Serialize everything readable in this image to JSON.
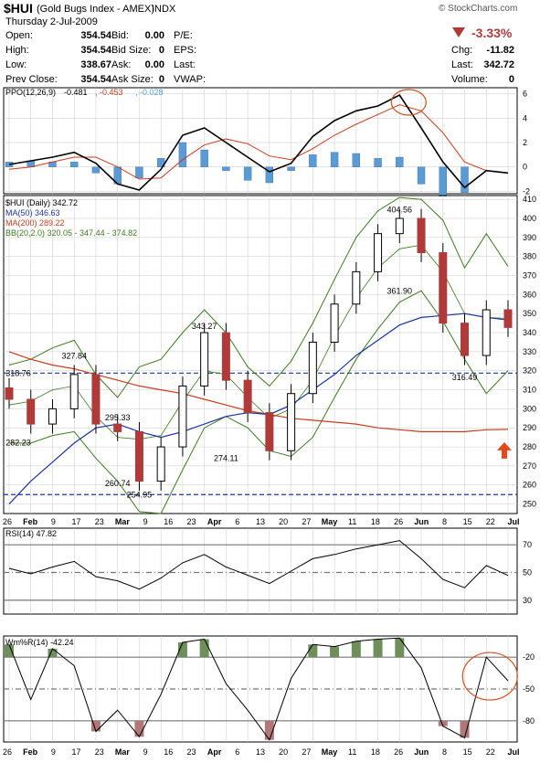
{
  "header": {
    "symbol": "$HUI",
    "description": "(Gold Bugs Index - AMEX)",
    "exchange": "INDX",
    "date": "Thursday  2-Jul-2009",
    "brand": "© StockCharts.com",
    "change_pct": "-3.33%",
    "fields": [
      {
        "label": "Open:",
        "value": "354.54"
      },
      {
        "label": "High:",
        "value": "354.54"
      },
      {
        "label": "Low:",
        "value": "338.67"
      },
      {
        "label": "Prev Close:",
        "value": "354.54"
      },
      {
        "label": "Bid:",
        "value": "0.00"
      },
      {
        "label": "Bid Size:",
        "value": "0"
      },
      {
        "label": "Ask:",
        "value": "0.00"
      },
      {
        "label": "Ask Size:",
        "value": "0"
      },
      {
        "label": "P/E:",
        "value": ""
      },
      {
        "label": "EPS:",
        "value": ""
      },
      {
        "label": "Last:",
        "value": ""
      },
      {
        "label": "VWAP:",
        "value": ""
      },
      {
        "label": "Chg:",
        "value": "-11.82"
      },
      {
        "label": "Last:",
        "value": "342.72"
      },
      {
        "label": "Volume:",
        "value": "0"
      }
    ]
  },
  "colors": {
    "up": "#000000",
    "down": "#b03a3a",
    "ma50": "#1c35a0",
    "ma200": "#c83c1e",
    "bb": "#3c7a1e",
    "ppo_hist": "#5b9bd5",
    "wm_fill_high": "#6f8f5a",
    "wm_fill_low": "#b07878",
    "circle": "#d0501e",
    "arrow": "#e04a1e",
    "grid": "#c8c8c8"
  },
  "chart_data": [
    {
      "type": "line",
      "name": "ppo_panel",
      "legend": [
        {
          "text": "PPO(12,26,9)",
          "color": "#000000"
        },
        {
          "text": "-0.481",
          "color": "#000000"
        },
        {
          "text": ", -0.453",
          "color": "#c83c1e"
        },
        {
          "text": ", -0.028",
          "color": "#5b9bd5"
        }
      ],
      "yticks": [
        "6",
        "4",
        "2",
        "0",
        "-2"
      ],
      "ylim": [
        -2.2,
        6.5
      ],
      "x_dates": [
        "Jan 26",
        "Feb 2",
        "Feb 9",
        "Feb 17",
        "Feb 23",
        "Mar 2",
        "Mar 9",
        "Mar 16",
        "Mar 23",
        "Mar 30",
        "Apr 6",
        "Apr 13",
        "Apr 20",
        "Apr 27",
        "May 4",
        "May 11",
        "May 18",
        "May 26",
        "Jun 1",
        "Jun 8",
        "Jun 15",
        "Jun 22",
        "Jun 29",
        "Jul 2"
      ],
      "series": [
        {
          "name": "PPO",
          "values": [
            0.2,
            0.5,
            0.8,
            1.2,
            0.3,
            -1.4,
            -1.9,
            -0.2,
            2.6,
            3.2,
            2.0,
            0.8,
            -0.4,
            0.3,
            2.5,
            3.8,
            4.6,
            5.0,
            5.9,
            3.2,
            0.4,
            -1.7,
            -0.3,
            -0.5
          ]
        },
        {
          "name": "Signal",
          "values": [
            -0.2,
            0.0,
            0.4,
            0.8,
            0.8,
            0.0,
            -1.0,
            -0.9,
            0.6,
            1.8,
            2.3,
            1.9,
            0.9,
            0.6,
            1.5,
            2.6,
            3.5,
            4.3,
            5.1,
            4.6,
            2.8,
            0.4,
            -0.3,
            -0.5
          ]
        },
        {
          "name": "Histogram",
          "values": [
            0.4,
            0.5,
            0.4,
            0.4,
            -0.5,
            -1.4,
            -0.9,
            0.7,
            2.0,
            1.4,
            -0.3,
            -1.1,
            -1.3,
            -0.3,
            1.0,
            1.2,
            1.1,
            0.7,
            0.8,
            -1.4,
            -2.4,
            -2.1,
            0.0,
            0.0
          ]
        }
      ]
    },
    {
      "type": "line",
      "name": "price_panel",
      "legend": [
        {
          "text": "$HUI (Daily) 342.72",
          "color": "#000000"
        },
        {
          "text": "MA(50) 346.63",
          "color": "#1c35a0"
        },
        {
          "text": "MA(200) 289.22",
          "color": "#c83c1e"
        },
        {
          "text": "BB(20,2.0) 320.05 - 347.44 - 374.82",
          "color": "#3c7a1e"
        }
      ],
      "yticks": [
        410,
        400,
        390,
        380,
        370,
        360,
        350,
        340,
        330,
        320,
        310,
        300,
        290,
        280,
        270,
        260,
        250
      ],
      "ylim": [
        245,
        412
      ],
      "horizontal_lines": [
        318.76,
        254.95
      ],
      "annotations": [
        {
          "text": "318.76",
          "x": "Jan 26",
          "y": 318.76
        },
        {
          "text": "282.23",
          "x": "Jan 30",
          "y": 282.23
        },
        {
          "text": "327.84",
          "x": "Feb 17",
          "y": 327.84
        },
        {
          "text": "295.33",
          "x": "Mar 2",
          "y": 295.33
        },
        {
          "text": "260.74",
          "x": "Mar 5",
          "y": 260.74
        },
        {
          "text": "254.95",
          "x": "Mar 9",
          "y": 254.95
        },
        {
          "text": "343.27",
          "x": "Mar 30",
          "y": 343.27
        },
        {
          "text": "274.11",
          "x": "Apr 21",
          "y": 274.11
        },
        {
          "text": "404.56",
          "x": "Jun 2",
          "y": 404.56
        },
        {
          "text": "361.90",
          "x": "Jun 26",
          "y": 361.9
        },
        {
          "text": "316.49",
          "x": "Jun 22",
          "y": 316.49
        }
      ],
      "x_dates": [
        "Jan 26",
        "Feb 2",
        "Feb 9",
        "Feb 17",
        "Feb 23",
        "Mar 2",
        "Mar 9",
        "Mar 16",
        "Mar 23",
        "Mar 30",
        "Apr 6",
        "Apr 13",
        "Apr 20",
        "Apr 27",
        "May 4",
        "May 11",
        "May 18",
        "May 26",
        "Jun 1",
        "Jun 8",
        "Jun 15",
        "Jun 22",
        "Jun 29",
        "Jul 2"
      ],
      "series": [
        {
          "name": "Close",
          "values": [
            305,
            292,
            300,
            318,
            292,
            288,
            262,
            280,
            312,
            340,
            315,
            298,
            278,
            308,
            335,
            355,
            372,
            392,
            400,
            382,
            345,
            328,
            352,
            342.72
          ]
        },
        {
          "name": "MA(50)",
          "values": [
            250,
            262,
            272,
            282,
            290,
            292,
            288,
            285,
            288,
            292,
            296,
            298,
            297,
            302,
            310,
            318,
            328,
            336,
            344,
            348,
            349,
            350,
            348,
            346.63
          ]
        },
        {
          "name": "MA(200)",
          "values": [
            330,
            326,
            323,
            321,
            318,
            315,
            312,
            310,
            308,
            305,
            302,
            299,
            297,
            295,
            294,
            293,
            292,
            290,
            289,
            288,
            288,
            288,
            289,
            289.22
          ]
        },
        {
          "name": "BB upper",
          "values": [
            323,
            326,
            332,
            336,
            318,
            306,
            322,
            326,
            340,
            352,
            340,
            322,
            312,
            325,
            345,
            368,
            390,
            404,
            411,
            410,
            399,
            374,
            392,
            374.82
          ]
        },
        {
          "name": "BB middle",
          "values": [
            302,
            304,
            310,
            312,
            296,
            285,
            284,
            286,
            304,
            320,
            318,
            306,
            295,
            300,
            315,
            338,
            358,
            374,
            384,
            386,
            372,
            350,
            348,
            347.44
          ]
        },
        {
          "name": "BB lower",
          "values": [
            282,
            282,
            286,
            288,
            274,
            262,
            246,
            245,
            268,
            290,
            296,
            290,
            278,
            275,
            285,
            306,
            326,
            342,
            356,
            362,
            346,
            326,
            308,
            320.05
          ]
        }
      ]
    },
    {
      "type": "line",
      "name": "rsi_panel",
      "legend": [
        {
          "text": "RSI(14) 47.82",
          "color": "#000000"
        }
      ],
      "yticks": [
        "70",
        "50",
        "30"
      ],
      "ylim": [
        20,
        82
      ],
      "horizontal_lines": [
        70,
        50,
        30
      ],
      "x_dates": [
        "Jan 26",
        "Feb 2",
        "Feb 9",
        "Feb 17",
        "Feb 23",
        "Mar 2",
        "Mar 9",
        "Mar 16",
        "Mar 23",
        "Mar 30",
        "Apr 6",
        "Apr 13",
        "Apr 20",
        "Apr 27",
        "May 4",
        "May 11",
        "May 18",
        "May 26",
        "Jun 1",
        "Jun 8",
        "Jun 15",
        "Jun 22",
        "Jun 29",
        "Jul 2"
      ],
      "series": [
        {
          "name": "RSI",
          "values": [
            53,
            49,
            54,
            58,
            47,
            44,
            38,
            46,
            57,
            63,
            54,
            48,
            42,
            51,
            60,
            63,
            67,
            70,
            73,
            60,
            45,
            39,
            55,
            47.82
          ]
        }
      ]
    },
    {
      "type": "line",
      "name": "wm_panel",
      "legend": [
        {
          "text": "Wm%R(14) -42.24",
          "color": "#000000"
        }
      ],
      "yticks": [
        "-20",
        "-50",
        "-80"
      ],
      "ylim": [
        -100,
        0
      ],
      "horizontal_lines": [
        -20,
        -50,
        -80
      ],
      "x_dates": [
        "Jan 26",
        "Feb 2",
        "Feb 9",
        "Feb 17",
        "Feb 23",
        "Mar 2",
        "Mar 9",
        "Mar 16",
        "Mar 23",
        "Mar 30",
        "Apr 6",
        "Apr 13",
        "Apr 20",
        "Apr 27",
        "May 4",
        "May 11",
        "May 18",
        "May 26",
        "Jun 1",
        "Jun 8",
        "Jun 15",
        "Jun 22",
        "Jun 29",
        "Jul 2"
      ],
      "series": [
        {
          "name": "Wm%R",
          "values": [
            -8,
            -60,
            -12,
            -28,
            -90,
            -70,
            -95,
            -55,
            -6,
            -3,
            -45,
            -70,
            -98,
            -40,
            -8,
            -10,
            -5,
            -3,
            -2,
            -30,
            -85,
            -96,
            -20,
            -42.24
          ]
        }
      ]
    }
  ],
  "x_axis_labels": [
    "26",
    "Feb",
    "9",
    "17",
    "23",
    "Mar",
    "9",
    "16",
    "23",
    "Apr",
    "6",
    "13",
    "20",
    "27",
    "May",
    "11",
    "18",
    "26",
    "Jun",
    "8",
    "15",
    "22",
    "Jul"
  ]
}
